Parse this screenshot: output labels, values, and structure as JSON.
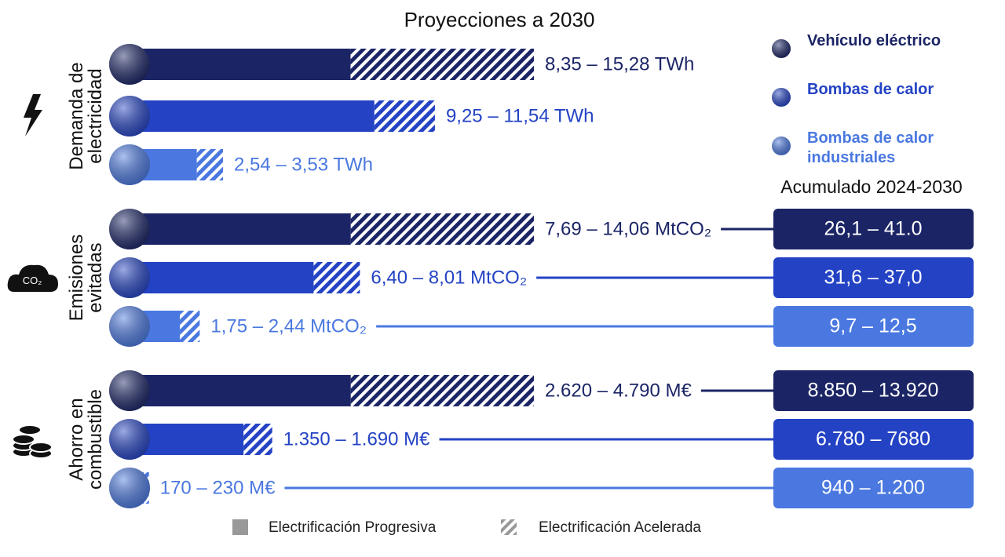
{
  "chart_data": {
    "type": "range_bar",
    "title": "Proyecciones a 2030",
    "cumulative_title": "Acumulado 2024-2030",
    "series": [
      {
        "name": "Vehículo eléctrico",
        "color": "#1b2566"
      },
      {
        "name": "Bombas de calor",
        "color": "#2443c4"
      },
      {
        "name": "Bombas de calor industriales",
        "color": "#4a78e0"
      }
    ],
    "pattern_legend": [
      "Electrificación Progresiva",
      "Electrificación Acelerada"
    ],
    "groups": [
      {
        "label": "Demanda de electricidad",
        "low": [
          8.35,
          9.25,
          2.54
        ],
        "high": [
          15.28,
          11.54,
          3.53
        ],
        "value_labels": [
          "8,35 – 15,28 TWh",
          "9,25 – 11,54 TWh",
          "2,54 – 3,53 TWh"
        ]
      },
      {
        "label": "Emisiones evitadas",
        "icon_text": "CO₂",
        "low": [
          7.69,
          6.4,
          1.75
        ],
        "high": [
          14.06,
          8.01,
          2.44
        ],
        "value_labels": [
          "7,69 – 14,06 MtCO₂",
          "6,40 – 8,01 MtCO₂",
          "1,75 – 2,44 MtCO₂"
        ],
        "cumulative": [
          "26,1 – 41.0",
          "31,6 – 37,0",
          "9,7 – 12,5"
        ]
      },
      {
        "label": "Ahorro en combustible",
        "low": [
          2620,
          1350,
          170
        ],
        "high": [
          4790,
          1690,
          230
        ],
        "value_labels": [
          "2.620 – 4.790 M€",
          "1.350 – 1.690 M€",
          "170 – 230 M€"
        ],
        "cumulative": [
          "8.850 – 13.920",
          "6.780 – 7680",
          "940 – 1.200"
        ]
      }
    ]
  }
}
